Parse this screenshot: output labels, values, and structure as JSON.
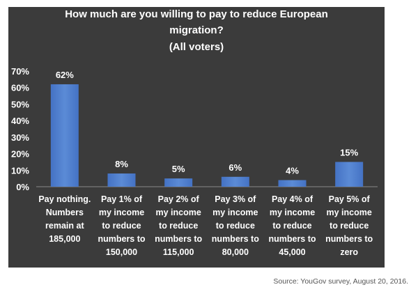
{
  "chart_data": {
    "type": "bar",
    "title_lines": [
      "How much are you willing  to pay to reduce European",
      "migration?",
      "(All voters)"
    ],
    "categories": [
      [
        "Pay nothing.",
        "Numbers",
        "remain at",
        "185,000"
      ],
      [
        "Pay 1% of",
        "my income",
        "to reduce",
        "numbers to",
        "150,000"
      ],
      [
        "Pay 2% of",
        "my income",
        "to reduce",
        "numbers to",
        "115,000"
      ],
      [
        "Pay 3% of",
        "my income",
        "to reduce",
        "numbers to",
        "80,000"
      ],
      [
        "Pay 4% of",
        "my income",
        "to reduce",
        "numbers to",
        "45,000"
      ],
      [
        "Pay 5% of",
        "my income",
        "to reduce",
        "numbers to",
        "zero"
      ]
    ],
    "values": [
      62,
      8,
      5,
      6,
      4,
      15
    ],
    "data_labels": [
      "62%",
      "8%",
      "5%",
      "6%",
      "4%",
      "15%"
    ],
    "ylim": [
      0,
      70
    ],
    "yticks": [
      0,
      10,
      20,
      30,
      40,
      50,
      60,
      70
    ],
    "ytick_labels": [
      "0%",
      "10%",
      "20%",
      "30%",
      "40%",
      "50%",
      "60%",
      "70%"
    ],
    "xlabel": "",
    "ylabel": "",
    "grid": false,
    "colors": {
      "background": "#3b3b3b",
      "bar": "#4472c4",
      "bar_light": "#5b8bd6",
      "text": "#ffffff"
    }
  },
  "source": "Source: YouGov survey, August 20, 2016."
}
